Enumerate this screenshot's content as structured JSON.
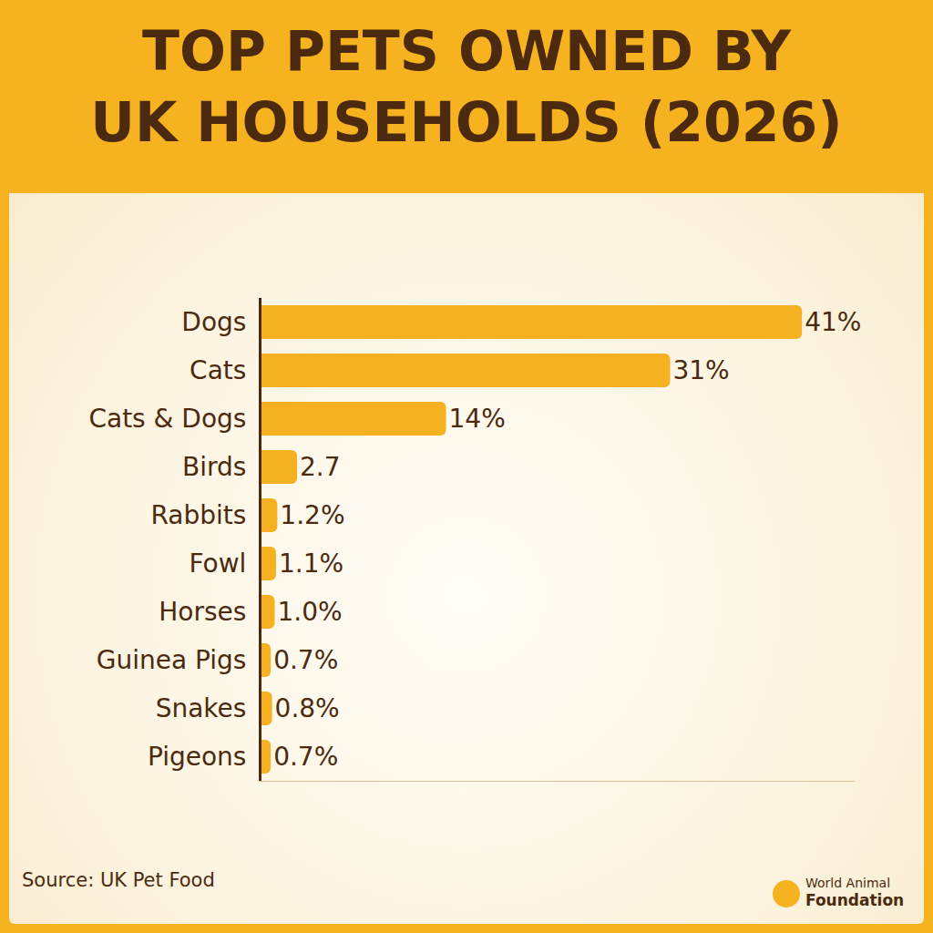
{
  "chart_data": {
    "type": "bar",
    "orientation": "horizontal",
    "title": "TOP PETS OWNED BY UK HOUSEHOLDS (2026)",
    "categories": [
      "Dogs",
      "Cats",
      "Cats & Dogs",
      "Birds",
      "Rabbits",
      "Fowl",
      "Horses",
      "Guinea Pigs",
      "Snakes",
      "Pigeons"
    ],
    "values": [
      41,
      31,
      14,
      2.7,
      1.2,
      1.1,
      1.0,
      0.7,
      0.8,
      0.7
    ],
    "value_labels": [
      "41%",
      "31%",
      "14%",
      "2.7",
      "1.2%",
      "1.1%",
      "1.0%",
      "0.7%",
      "0.8%",
      "0.7%"
    ],
    "color": "#f5b120",
    "xlim": [
      0,
      45
    ],
    "data_labels": true,
    "tick_labels": "y",
    "grid": false,
    "source": "Source: UK Pet Food",
    "logo": "World Animal Foundation"
  }
}
